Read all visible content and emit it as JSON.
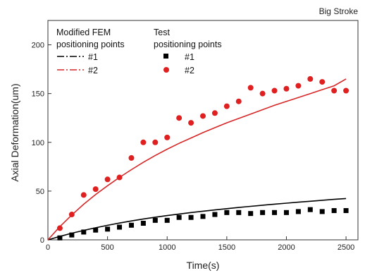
{
  "chart_data": {
    "type": "scatter",
    "title": "Big Stroke",
    "xlabel": "Time(s)",
    "ylabel": "Axial Deformation(um)",
    "xlim": [
      0,
      2600
    ],
    "ylim": [
      0,
      225
    ],
    "xticks": [
      0,
      500,
      1000,
      1500,
      2000,
      2500
    ],
    "yticks": [
      0,
      50,
      100,
      150,
      200
    ],
    "grid": false,
    "legend": {
      "placement": "top-left",
      "groups": [
        {
          "title": "Modified FEM",
          "subtitle": "positioning points",
          "entries": [
            "#1",
            "#2"
          ]
        },
        {
          "title": "Test",
          "subtitle": "positioning points",
          "entries": [
            "#1",
            "#2"
          ]
        }
      ]
    },
    "series": [
      {
        "name": "#1",
        "group": "Modified FEM",
        "kind": "line",
        "style": "dash-dot",
        "color": "#000000",
        "x": [
          0,
          100,
          200,
          300,
          400,
          500,
          600,
          700,
          800,
          900,
          1000,
          1100,
          1200,
          1300,
          1400,
          1500,
          1600,
          1700,
          1800,
          1900,
          2000,
          2100,
          2200,
          2300,
          2400,
          2500
        ],
        "y": [
          0,
          3.5,
          6.8,
          9.7,
          12.4,
          14.9,
          17.2,
          19.4,
          21.4,
          23.2,
          24.9,
          26.5,
          28.0,
          29.4,
          30.7,
          32.0,
          33.2,
          34.4,
          35.5,
          36.6,
          37.6,
          38.6,
          39.6,
          40.6,
          41.5,
          42.4
        ]
      },
      {
        "name": "#2",
        "group": "Modified FEM",
        "kind": "line",
        "style": "dash-dot",
        "color": "#d62728",
        "x": [
          0,
          100,
          200,
          300,
          400,
          500,
          600,
          700,
          800,
          900,
          1000,
          1100,
          1200,
          1300,
          1400,
          1500,
          1600,
          1700,
          1800,
          1900,
          2000,
          2100,
          2200,
          2300,
          2400,
          2500
        ],
        "y": [
          0,
          13.5,
          25.5,
          36.5,
          46.5,
          55.5,
          64,
          72,
          79.5,
          86.5,
          93,
          99,
          104.5,
          110,
          115,
          120,
          124.5,
          129,
          133.5,
          138,
          142,
          146,
          150,
          154,
          158,
          165
        ]
      },
      {
        "name": "#1",
        "group": "Test",
        "kind": "points",
        "marker": "square",
        "color": "#000000",
        "x": [
          100,
          200,
          300,
          400,
          500,
          600,
          700,
          800,
          900,
          1000,
          1100,
          1200,
          1300,
          1400,
          1500,
          1600,
          1700,
          1800,
          1900,
          2000,
          2100,
          2200,
          2300,
          2400,
          2500
        ],
        "y": [
          2,
          5,
          8,
          10,
          11,
          13,
          15,
          17,
          20,
          20,
          23,
          23,
          24,
          26,
          28,
          28,
          27,
          28,
          28,
          28,
          29,
          31,
          29,
          30,
          30
        ]
      },
      {
        "name": "#2",
        "group": "Test",
        "kind": "points",
        "marker": "circle",
        "color": "#e02020",
        "x": [
          100,
          200,
          300,
          400,
          500,
          600,
          700,
          800,
          900,
          1000,
          1100,
          1200,
          1300,
          1400,
          1500,
          1600,
          1700,
          1800,
          1900,
          2000,
          2100,
          2200,
          2300,
          2400,
          2500
        ],
        "y": [
          12,
          26,
          46,
          52,
          62,
          64,
          84,
          100,
          100,
          105,
          125,
          120,
          127,
          130,
          137,
          142,
          156,
          150,
          153,
          155,
          158,
          165,
          162,
          153,
          153
        ]
      }
    ]
  }
}
